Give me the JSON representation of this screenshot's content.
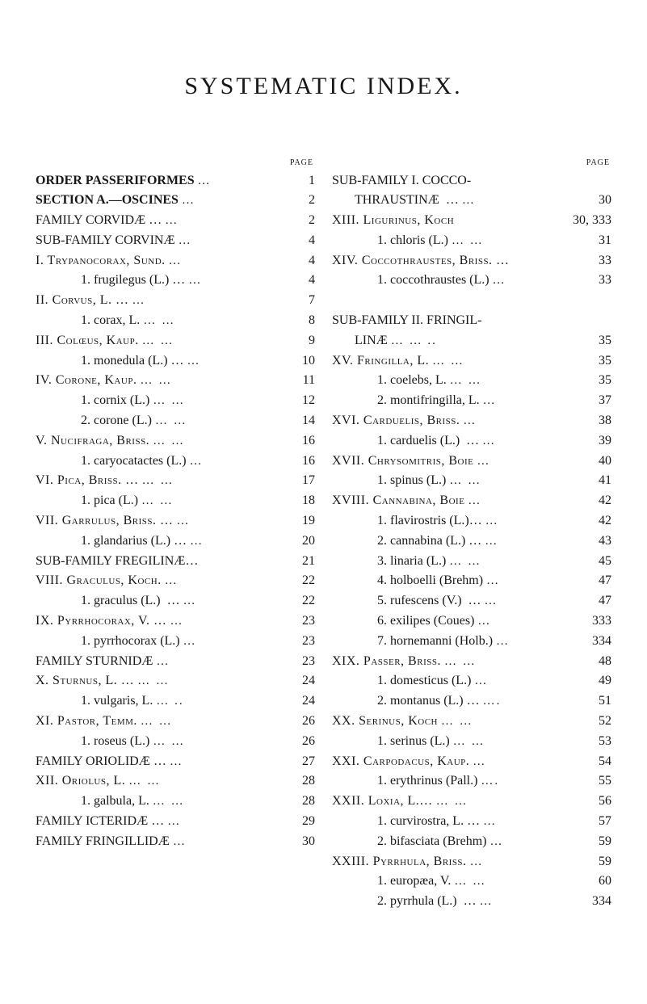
{
  "title": "SYSTEMATIC INDEX.",
  "page_label": "PAGE",
  "left": [
    {
      "indent": 0,
      "bold": true,
      "sc": false,
      "label": "ORDER PASSERIFORMES",
      "dots": "…",
      "page": "1"
    },
    {
      "indent": 0,
      "bold": true,
      "sc": false,
      "label": "SECTION A.—OSCINES",
      "dots": "…",
      "page": "2"
    },
    {
      "indent": 0,
      "bold": false,
      "sc": false,
      "label": "FAMILY CORVIDÆ …",
      "dots": "…",
      "page": "2"
    },
    {
      "indent": 0,
      "bold": false,
      "sc": false,
      "label": "SUB-FAMILY CORVINÆ",
      "dots": "…",
      "page": "4"
    },
    {
      "indent": 0,
      "bold": false,
      "sc": true,
      "label": "I. Trypanocorax, Sund.",
      "dots": "…",
      "page": "4"
    },
    {
      "indent": 2,
      "bold": false,
      "sc": false,
      "label": "1. frugilegus (L.) …",
      "dots": "…",
      "page": "4"
    },
    {
      "indent": 0,
      "bold": false,
      "sc": true,
      "label": "II. Corvus, L. …",
      "dots": "…",
      "page": "7"
    },
    {
      "indent": 2,
      "bold": false,
      "sc": false,
      "label": "1. corax, L.",
      "dots": "… …",
      "page": "8"
    },
    {
      "indent": 0,
      "bold": false,
      "sc": true,
      "label": "III. Colœus, Kaup.",
      "dots": "… …",
      "page": "9"
    },
    {
      "indent": 2,
      "bold": false,
      "sc": false,
      "label": "1. monedula (L.) …",
      "dots": "…",
      "page": "10"
    },
    {
      "indent": 0,
      "bold": false,
      "sc": true,
      "label": "IV. Corone, Kaup.",
      "dots": "… …",
      "page": "11"
    },
    {
      "indent": 2,
      "bold": false,
      "sc": false,
      "label": "1. cornix (L.)",
      "dots": "… …",
      "page": "12"
    },
    {
      "indent": 2,
      "bold": false,
      "sc": false,
      "label": "2. corone (L.)",
      "dots": "… …",
      "page": "14"
    },
    {
      "indent": 0,
      "bold": false,
      "sc": true,
      "label": "V. Nucifraga, Briss.",
      "dots": "… …",
      "page": "16"
    },
    {
      "indent": 2,
      "bold": false,
      "sc": false,
      "label": "1. caryocatactes (L.)",
      "dots": "…",
      "page": "16"
    },
    {
      "indent": 0,
      "bold": false,
      "sc": true,
      "label": "VI. Pica, Briss. …",
      "dots": "… …",
      "page": "17"
    },
    {
      "indent": 2,
      "bold": false,
      "sc": false,
      "label": "1. pica (L.)",
      "dots": "… …",
      "page": "18"
    },
    {
      "indent": 0,
      "bold": false,
      "sc": true,
      "label": "VII. Garrulus, Briss. …",
      "dots": "…",
      "page": "19"
    },
    {
      "indent": 2,
      "bold": false,
      "sc": false,
      "label": "1. glandarius (L.) …",
      "dots": "…",
      "page": "20"
    },
    {
      "indent": 0,
      "bold": false,
      "sc": false,
      "label": "SUB-FAMILY FREGILINÆ…",
      "dots": "",
      "page": "21"
    },
    {
      "indent": 0,
      "bold": false,
      "sc": true,
      "label": "VIII. Graculus, Koch.",
      "dots": "…",
      "page": "22"
    },
    {
      "indent": 2,
      "bold": false,
      "sc": false,
      "label": "1. graculus (L.)  …",
      "dots": "…",
      "page": "22"
    },
    {
      "indent": 0,
      "bold": false,
      "sc": true,
      "label": "IX. Pyrrhocorax, V. …",
      "dots": "…",
      "page": "23"
    },
    {
      "indent": 2,
      "bold": false,
      "sc": false,
      "label": "1. pyrrhocorax (L.)",
      "dots": "…",
      "page": "23"
    },
    {
      "indent": 0,
      "bold": false,
      "sc": false,
      "label": "FAMILY STURNIDÆ",
      "dots": "…",
      "page": "23"
    },
    {
      "indent": 0,
      "bold": false,
      "sc": true,
      "label": "X. Sturnus, L. …",
      "dots": "… …",
      "page": "24"
    },
    {
      "indent": 2,
      "bold": false,
      "sc": false,
      "label": "1. vulgaris, L.",
      "dots": "… ..",
      "page": "24"
    },
    {
      "indent": 0,
      "bold": false,
      "sc": true,
      "label": "XI. Pastor, Temm.",
      "dots": "… …",
      "page": "26"
    },
    {
      "indent": 2,
      "bold": false,
      "sc": false,
      "label": "1. roseus (L.)",
      "dots": "… …",
      "page": "26"
    },
    {
      "indent": 0,
      "bold": false,
      "sc": false,
      "label": "FAMILY ORIOLIDÆ …",
      "dots": "…",
      "page": "27"
    },
    {
      "indent": 0,
      "bold": false,
      "sc": true,
      "label": "XII. Oriolus, L.",
      "dots": "… …",
      "page": "28"
    },
    {
      "indent": 2,
      "bold": false,
      "sc": false,
      "label": "1. galbula, L.",
      "dots": "… …",
      "page": "28"
    },
    {
      "indent": 0,
      "bold": false,
      "sc": false,
      "label": "FAMILY ICTERIDÆ …",
      "dots": "…",
      "page": "29"
    },
    {
      "indent": 0,
      "bold": false,
      "sc": false,
      "label": "FAMILY FRINGILLIDÆ",
      "dots": "…",
      "page": "30"
    }
  ],
  "right": [
    {
      "indent": 0,
      "bold": false,
      "sc": false,
      "label": "SUB-FAMILY I. COCCO-",
      "dots": "",
      "page": ""
    },
    {
      "indent": 1,
      "bold": false,
      "sc": false,
      "label": "THRAUSTINÆ  …",
      "dots": "…",
      "page": "30"
    },
    {
      "indent": 0,
      "bold": false,
      "sc": true,
      "label": "XIII. Ligurinus, Koch",
      "dots": "",
      "page": "30, 333"
    },
    {
      "indent": 2,
      "bold": false,
      "sc": false,
      "label": "1. chloris (L.)",
      "dots": "… …",
      "page": "31"
    },
    {
      "indent": 0,
      "bold": false,
      "sc": true,
      "label": "XIV. Coccothraustes, Briss. …",
      "dots": "",
      "page": "33"
    },
    {
      "indent": 2,
      "bold": false,
      "sc": false,
      "label": "1. coccothraustes (L.)",
      "dots": "…",
      "page": "33"
    },
    {
      "indent": 0,
      "bold": false,
      "sc": false,
      "label": " ",
      "dots": "",
      "page": ""
    },
    {
      "indent": 0,
      "bold": false,
      "sc": false,
      "label": "SUB-FAMILY II. FRINGIL-",
      "dots": "",
      "page": ""
    },
    {
      "indent": 1,
      "bold": false,
      "sc": false,
      "label": "LINÆ",
      "dots": "… … ..",
      "page": "35"
    },
    {
      "indent": 0,
      "bold": false,
      "sc": true,
      "label": "XV. Fringilla, L.",
      "dots": "… …",
      "page": "35"
    },
    {
      "indent": 2,
      "bold": false,
      "sc": false,
      "label": "1. coelebs, L.",
      "dots": "… …",
      "page": "35"
    },
    {
      "indent": 2,
      "bold": false,
      "sc": false,
      "label": "2. montifringilla, L.",
      "dots": "…",
      "page": "37"
    },
    {
      "indent": 0,
      "bold": false,
      "sc": true,
      "label": "XVI. Carduelis, Briss.",
      "dots": "…",
      "page": "38"
    },
    {
      "indent": 2,
      "bold": false,
      "sc": false,
      "label": "1. carduelis (L.)  …",
      "dots": "…",
      "page": "39"
    },
    {
      "indent": 0,
      "bold": false,
      "sc": true,
      "label": "XVII. Chrysomitris, Boie",
      "dots": "…",
      "page": "40"
    },
    {
      "indent": 2,
      "bold": false,
      "sc": false,
      "label": "1. spinus (L.)",
      "dots": "… …",
      "page": "41"
    },
    {
      "indent": 0,
      "bold": false,
      "sc": true,
      "label": "XVIII. Cannabina, Boie",
      "dots": "…",
      "page": "42"
    },
    {
      "indent": 2,
      "bold": false,
      "sc": false,
      "label": "1. flavirostris (L.)…",
      "dots": "…",
      "page": "42"
    },
    {
      "indent": 2,
      "bold": false,
      "sc": false,
      "label": "2. cannabina (L.) …",
      "dots": "…",
      "page": "43"
    },
    {
      "indent": 2,
      "bold": false,
      "sc": false,
      "label": "3. linaria (L.)",
      "dots": "… …",
      "page": "45"
    },
    {
      "indent": 2,
      "bold": false,
      "sc": false,
      "label": "4. holboelli (Brehm)",
      "dots": "…",
      "page": "47"
    },
    {
      "indent": 2,
      "bold": false,
      "sc": false,
      "label": "5. rufescens (V.)  …",
      "dots": "…",
      "page": "47"
    },
    {
      "indent": 2,
      "bold": false,
      "sc": false,
      "label": "6. exilipes (Coues)",
      "dots": "…",
      "page": "333"
    },
    {
      "indent": 2,
      "bold": false,
      "sc": false,
      "label": "7. hornemanni (Holb.)",
      "dots": "…",
      "page": "334"
    },
    {
      "indent": 0,
      "bold": false,
      "sc": true,
      "label": "XIX. Passer, Briss.",
      "dots": "… …",
      "page": "48"
    },
    {
      "indent": 2,
      "bold": false,
      "sc": false,
      "label": "1. domesticus (L.)",
      "dots": "…",
      "page": "49"
    },
    {
      "indent": 2,
      "bold": false,
      "sc": false,
      "label": "2. montanus (L.) …",
      "dots": "….",
      "page": "51"
    },
    {
      "indent": 0,
      "bold": false,
      "sc": true,
      "label": "XX. Serinus, Koch",
      "dots": "… …",
      "page": "52"
    },
    {
      "indent": 2,
      "bold": false,
      "sc": false,
      "label": "1. serinus (L.)",
      "dots": "… …",
      "page": "53"
    },
    {
      "indent": 0,
      "bold": false,
      "sc": true,
      "label": "XXI. Carpodacus, Kaup.",
      "dots": "…",
      "page": "54"
    },
    {
      "indent": 2,
      "bold": false,
      "sc": false,
      "label": "1. erythrinus (Pall.)",
      "dots": "….",
      "page": "55"
    },
    {
      "indent": 0,
      "bold": false,
      "sc": true,
      "label": "XXII. Loxia, L.…",
      "dots": "… …",
      "page": "56"
    },
    {
      "indent": 2,
      "bold": false,
      "sc": false,
      "label": "1. curvirostra, L. …",
      "dots": "…",
      "page": "57"
    },
    {
      "indent": 2,
      "bold": false,
      "sc": false,
      "label": "2. bifasciata (Brehm)",
      "dots": "…",
      "page": "59"
    },
    {
      "indent": 0,
      "bold": false,
      "sc": true,
      "label": "XXIII. Pyrrhula, Briss.",
      "dots": "…",
      "page": "59"
    },
    {
      "indent": 2,
      "bold": false,
      "sc": false,
      "label": "1. europæa, V.",
      "dots": "… …",
      "page": "60"
    },
    {
      "indent": 2,
      "bold": false,
      "sc": false,
      "label": "2. pyrrhula (L.)  …",
      "dots": "…",
      "page": "334"
    }
  ]
}
